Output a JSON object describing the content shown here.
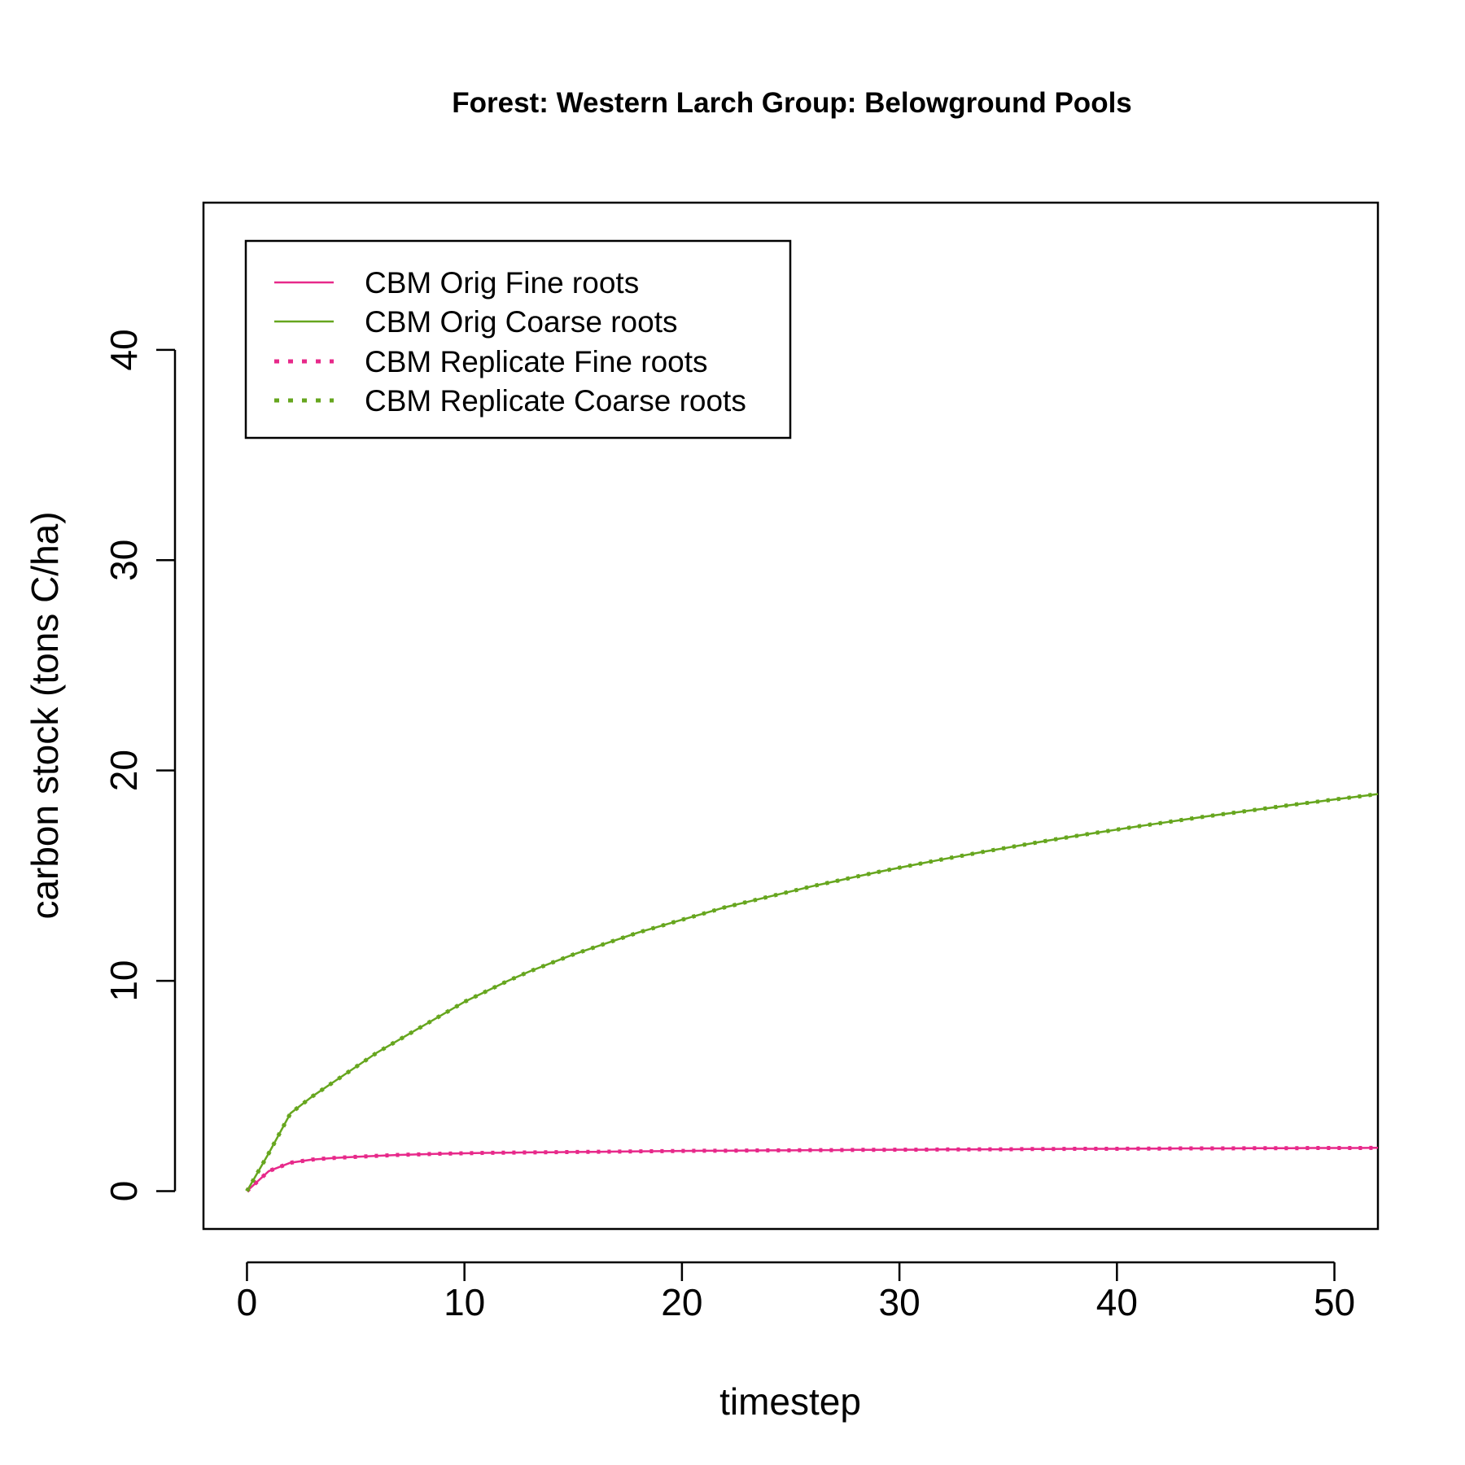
{
  "chart_data": {
    "type": "line",
    "title": "Forest: Western Larch Group: Belowground Pools",
    "xlabel": "timestep",
    "ylabel": "carbon stock (tons C/ha)",
    "xlim": [
      -2,
      52
    ],
    "ylim": [
      -1.8,
      47
    ],
    "x_ticks": [
      0,
      10,
      20,
      30,
      40,
      50
    ],
    "y_ticks": [
      0,
      10,
      20,
      30,
      40
    ],
    "grid": false,
    "legend_position": "top-left",
    "x": [
      0,
      1,
      2,
      3,
      4,
      5,
      6,
      7,
      8,
      9,
      10,
      11,
      12,
      13,
      14,
      15,
      16,
      17,
      18,
      19,
      20,
      21,
      22,
      23,
      24,
      25,
      26,
      27,
      28,
      29,
      30,
      31,
      32,
      33,
      34,
      35,
      36,
      37,
      38,
      39,
      40,
      41,
      42,
      43,
      44,
      45,
      46,
      47,
      48,
      49,
      50,
      51,
      52
    ],
    "series": [
      {
        "name": "CBM Orig Fine roots",
        "color": "#e7298a",
        "style": "solid",
        "values": [
          0,
          0.95,
          1.35,
          1.5,
          1.58,
          1.63,
          1.68,
          1.72,
          1.75,
          1.78,
          1.8,
          1.82,
          1.83,
          1.84,
          1.85,
          1.86,
          1.87,
          1.88,
          1.89,
          1.9,
          1.91,
          1.92,
          1.92,
          1.93,
          1.94,
          1.94,
          1.95,
          1.95,
          1.96,
          1.96,
          1.97,
          1.97,
          1.98,
          1.98,
          1.99,
          1.99,
          2.0,
          2.0,
          2.01,
          2.01,
          2.01,
          2.02,
          2.02,
          2.03,
          2.03,
          2.03,
          2.04,
          2.04,
          2.04,
          2.05,
          2.05,
          2.05,
          2.06
        ]
      },
      {
        "name": "CBM Orig Coarse roots",
        "color": "#66a61e",
        "style": "solid",
        "values": [
          0,
          1.8,
          3.7,
          4.5,
          5.2,
          5.9,
          6.6,
          7.2,
          7.8,
          8.4,
          9.0,
          9.5,
          10.0,
          10.45,
          10.85,
          11.25,
          11.6,
          11.95,
          12.3,
          12.6,
          12.9,
          13.2,
          13.5,
          13.75,
          14.0,
          14.25,
          14.5,
          14.72,
          14.95,
          15.17,
          15.38,
          15.58,
          15.78,
          15.97,
          16.16,
          16.34,
          16.52,
          16.7,
          16.87,
          17.03,
          17.19,
          17.35,
          17.5,
          17.65,
          17.8,
          17.94,
          18.08,
          18.22,
          18.36,
          18.49,
          18.62,
          18.75,
          18.88
        ]
      },
      {
        "name": "CBM Replicate Fine roots",
        "color": "#e7298a",
        "style": "dotted",
        "values": [
          0,
          0.95,
          1.35,
          1.5,
          1.58,
          1.63,
          1.68,
          1.72,
          1.75,
          1.78,
          1.8,
          1.82,
          1.83,
          1.84,
          1.85,
          1.86,
          1.87,
          1.88,
          1.89,
          1.9,
          1.91,
          1.92,
          1.92,
          1.93,
          1.94,
          1.94,
          1.95,
          1.95,
          1.96,
          1.96,
          1.97,
          1.97,
          1.98,
          1.98,
          1.99,
          1.99,
          2.0,
          2.0,
          2.01,
          2.01,
          2.01,
          2.02,
          2.02,
          2.03,
          2.03,
          2.03,
          2.04,
          2.04,
          2.04,
          2.05,
          2.05,
          2.05,
          2.06
        ]
      },
      {
        "name": "CBM Replicate Coarse roots",
        "color": "#66a61e",
        "style": "dotted",
        "values": [
          0,
          1.8,
          3.7,
          4.5,
          5.2,
          5.9,
          6.6,
          7.2,
          7.8,
          8.4,
          9.0,
          9.5,
          10.0,
          10.45,
          10.85,
          11.25,
          11.6,
          11.95,
          12.3,
          12.6,
          12.9,
          13.2,
          13.5,
          13.75,
          14.0,
          14.25,
          14.5,
          14.72,
          14.95,
          15.17,
          15.38,
          15.58,
          15.78,
          15.97,
          16.16,
          16.34,
          16.52,
          16.7,
          16.87,
          17.03,
          17.19,
          17.35,
          17.5,
          17.65,
          17.8,
          17.94,
          18.08,
          18.22,
          18.36,
          18.49,
          18.62,
          18.75,
          18.88
        ]
      }
    ]
  }
}
